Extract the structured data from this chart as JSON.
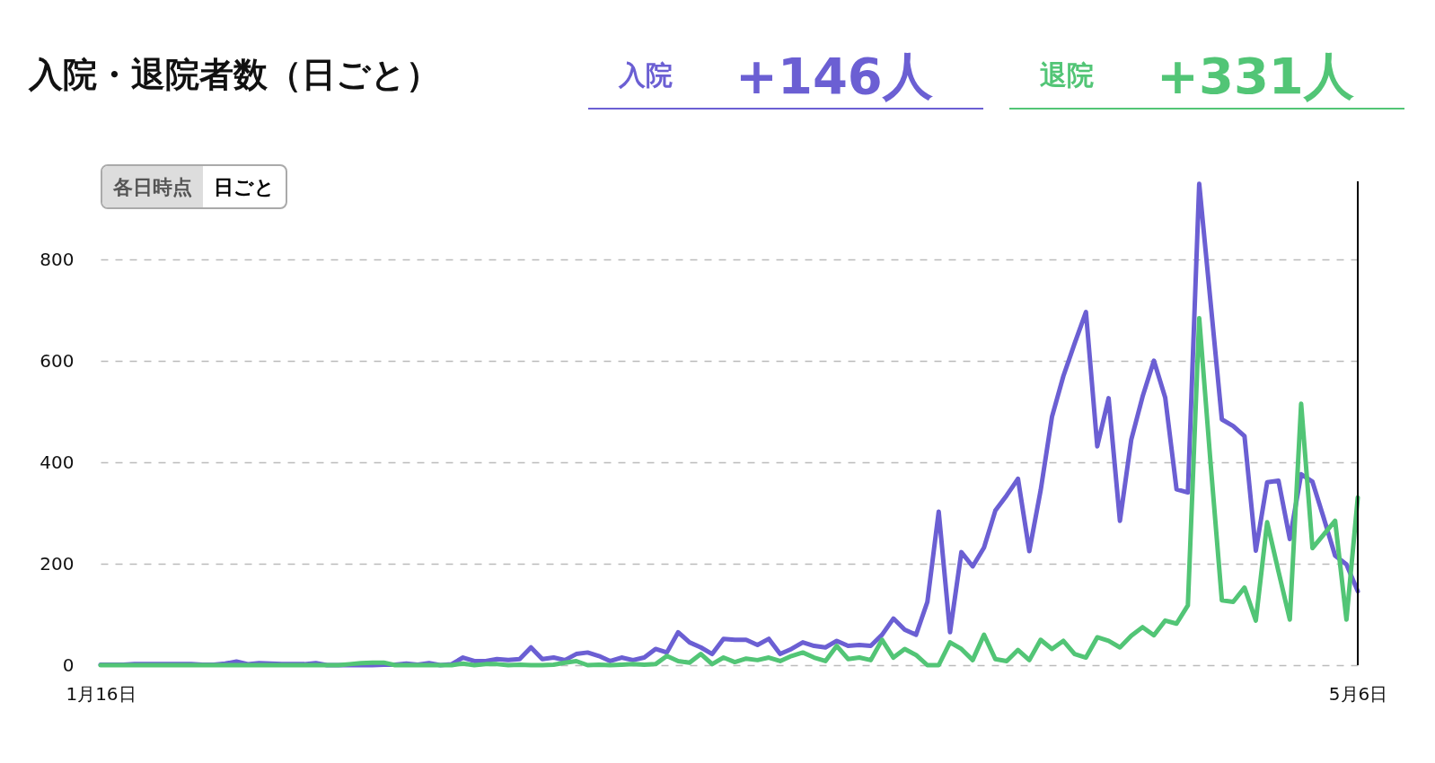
{
  "chart_data": {
    "type": "line",
    "title": "入院・退院者数（日ごと）",
    "x": [
      "--01-16",
      "--01-17",
      "--01-18",
      "--01-19",
      "--01-20",
      "--01-21",
      "--01-22",
      "--01-23",
      "--01-24",
      "--01-25",
      "--01-26",
      "--01-27",
      "--01-28",
      "--01-29",
      "--01-30",
      "--01-31",
      "--02-01",
      "--02-02",
      "--02-03",
      "--02-04",
      "--02-05",
      "--02-06",
      "--02-07",
      "--02-08",
      "--02-09",
      "--02-10",
      "--02-11",
      "--02-12",
      "--02-13",
      "--02-14",
      "--02-15",
      "--02-16",
      "--02-17",
      "--02-18",
      "--02-19",
      "--02-20",
      "--02-21",
      "--02-22",
      "--02-23",
      "--02-24",
      "--02-25",
      "--02-26",
      "--02-27",
      "--02-28",
      "--02-29",
      "--03-01",
      "--03-02",
      "--03-03",
      "--03-04",
      "--03-05",
      "--03-06",
      "--03-07",
      "--03-08",
      "--03-09",
      "--03-10",
      "--03-11",
      "--03-12",
      "--03-13",
      "--03-14",
      "--03-15",
      "--03-16",
      "--03-17",
      "--03-18",
      "--03-19",
      "--03-20",
      "--03-21",
      "--03-22",
      "--03-23",
      "--03-24",
      "--03-25",
      "--03-26",
      "--03-27",
      "--03-28",
      "--03-29",
      "--03-30",
      "--03-31",
      "--04-01",
      "--04-02",
      "--04-03",
      "--04-04",
      "--04-05",
      "--04-06",
      "--04-07",
      "--04-08",
      "--04-09",
      "--04-10",
      "--04-11",
      "--04-12",
      "--04-13",
      "--04-14",
      "--04-15",
      "--04-16",
      "--04-17",
      "--04-18",
      "--04-19",
      "--04-20",
      "--04-21",
      "--04-22",
      "--04-23",
      "--04-24",
      "--04-25",
      "--04-26",
      "--04-27",
      "--04-28",
      "--04-29",
      "--04-30",
      "--05-01",
      "--05-02",
      "--05-03",
      "--05-04",
      "--05-05",
      "--05-06"
    ],
    "series": [
      {
        "name": "入院",
        "color": "#6b5fd3",
        "values": [
          1,
          1,
          1,
          2,
          2,
          2,
          2,
          2,
          2,
          1,
          1,
          3,
          7,
          2,
          4,
          3,
          2,
          2,
          2,
          4,
          0,
          0,
          0,
          0,
          0,
          1,
          1,
          3,
          1,
          4,
          0,
          2,
          15,
          8,
          8,
          12,
          10,
          12,
          35,
          12,
          15,
          10,
          22,
          25,
          18,
          8,
          15,
          10,
          15,
          32,
          25,
          65,
          45,
          35,
          22,
          52,
          50,
          50,
          40,
          52,
          22,
          32,
          45,
          38,
          35,
          48,
          38,
          40,
          38,
          60,
          92,
          70,
          60,
          125,
          303,
          65,
          223,
          195,
          232,
          305,
          335,
          368,
          225,
          345,
          490,
          570,
          635,
          697,
          432,
          527,
          285,
          445,
          530,
          601,
          528,
          347,
          341,
          950,
          717,
          485,
          472,
          452,
          226,
          361,
          364,
          249,
          377,
          362,
          290,
          216,
          199,
          146
        ]
      },
      {
        "name": "退院",
        "color": "#52c576",
        "values": [
          0,
          0,
          0,
          0,
          0,
          0,
          0,
          0,
          0,
          0,
          0,
          0,
          0,
          0,
          0,
          0,
          0,
          0,
          0,
          0,
          0,
          0,
          2,
          4,
          5,
          5,
          0,
          0,
          0,
          0,
          0,
          0,
          3,
          0,
          2,
          2,
          0,
          1,
          0,
          0,
          1,
          5,
          8,
          0,
          1,
          0,
          1,
          2,
          1,
          2,
          18,
          8,
          5,
          22,
          2,
          15,
          6,
          13,
          10,
          15,
          8,
          18,
          25,
          15,
          8,
          38,
          12,
          15,
          10,
          50,
          15,
          32,
          20,
          0,
          0,
          45,
          32,
          10,
          60,
          12,
          8,
          30,
          10,
          50,
          32,
          48,
          22,
          15,
          55,
          48,
          35,
          58,
          75,
          59,
          88,
          82,
          118,
          685,
          400,
          128,
          125,
          153,
          88,
          282,
          185,
          90,
          516,
          231,
          258,
          285,
          90,
          331
        ]
      }
    ],
    "annotations": [
      "+146人",
      "+331人",
      "各日時点",
      "日ごと"
    ],
    "xticks": [
      {
        "value": "--01-16",
        "label": "1月16日"
      },
      {
        "value": "--05-06",
        "label": "5月6日"
      }
    ],
    "xlim": [
      "--01-16",
      "--05-06"
    ],
    "ylim": [
      0,
      955
    ],
    "yticks": [
      0,
      200,
      400,
      600,
      800
    ],
    "grid": "y",
    "ref_lines": [
      {
        "axis": "x",
        "value": "--05-06",
        "color": "#000000"
      }
    ]
  }
}
